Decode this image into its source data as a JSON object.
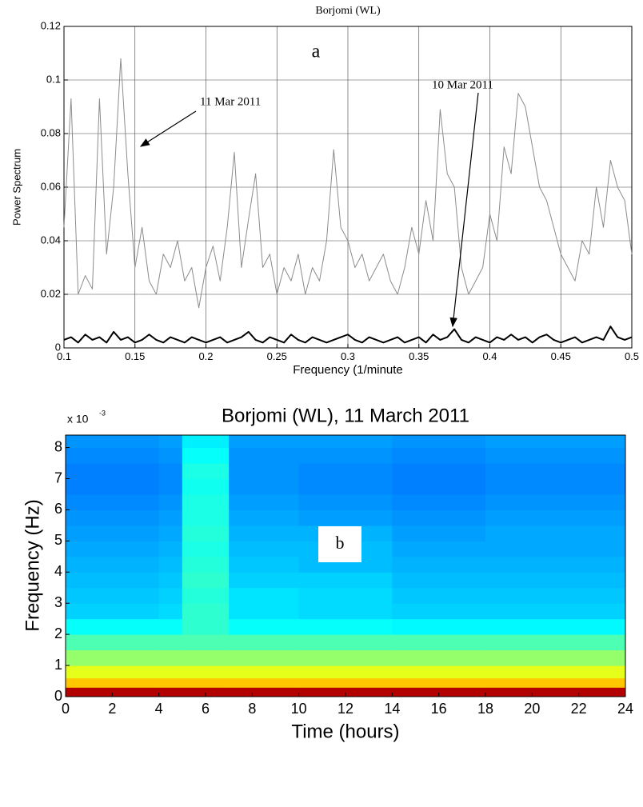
{
  "chart_data": [
    {
      "type": "line",
      "title": "Borjomi (WL)",
      "xlabel": "Frequency (1/minute",
      "ylabel": "Power Spectrum",
      "annotations": [
        "a",
        "11 Mar 2011",
        "10 Mar 2011"
      ],
      "xlim": [
        0.1,
        0.5
      ],
      "ylim": [
        0,
        0.12
      ],
      "xticks": [
        0.1,
        0.15,
        0.2,
        0.25,
        0.3,
        0.35,
        0.4,
        0.45,
        0.5
      ],
      "yticks": [
        0,
        0.02,
        0.04,
        0.06,
        0.08,
        0.1,
        0.12
      ],
      "grid": true,
      "x": [
        0.1,
        0.105,
        0.11,
        0.115,
        0.12,
        0.125,
        0.13,
        0.135,
        0.14,
        0.145,
        0.15,
        0.155,
        0.16,
        0.165,
        0.17,
        0.175,
        0.18,
        0.185,
        0.19,
        0.195,
        0.2,
        0.205,
        0.21,
        0.215,
        0.22,
        0.225,
        0.23,
        0.235,
        0.24,
        0.245,
        0.25,
        0.255,
        0.26,
        0.265,
        0.27,
        0.275,
        0.28,
        0.285,
        0.29,
        0.295,
        0.3,
        0.305,
        0.31,
        0.315,
        0.32,
        0.325,
        0.33,
        0.335,
        0.34,
        0.345,
        0.35,
        0.355,
        0.36,
        0.365,
        0.37,
        0.375,
        0.38,
        0.385,
        0.39,
        0.395,
        0.4,
        0.405,
        0.41,
        0.415,
        0.42,
        0.425,
        0.43,
        0.435,
        0.44,
        0.445,
        0.45,
        0.455,
        0.46,
        0.465,
        0.47,
        0.475,
        0.48,
        0.485,
        0.49,
        0.495,
        0.5
      ],
      "series": [
        {
          "color": "#8c8c8c",
          "width": 1,
          "values": [
            0.045,
            0.093,
            0.02,
            0.027,
            0.022,
            0.093,
            0.035,
            0.06,
            0.108,
            0.065,
            0.03,
            0.045,
            0.025,
            0.02,
            0.035,
            0.03,
            0.04,
            0.025,
            0.03,
            0.015,
            0.03,
            0.038,
            0.025,
            0.045,
            0.073,
            0.03,
            0.048,
            0.065,
            0.03,
            0.035,
            0.02,
            0.03,
            0.025,
            0.035,
            0.02,
            0.03,
            0.025,
            0.04,
            0.074,
            0.045,
            0.04,
            0.03,
            0.035,
            0.025,
            0.03,
            0.035,
            0.025,
            0.02,
            0.03,
            0.045,
            0.035,
            0.055,
            0.04,
            0.089,
            0.065,
            0.06,
            0.03,
            0.02,
            0.025,
            0.03,
            0.05,
            0.04,
            0.075,
            0.065,
            0.095,
            0.09,
            0.075,
            0.06,
            0.055,
            0.045,
            0.035,
            0.03,
            0.025,
            0.04,
            0.035,
            0.06,
            0.045,
            0.07,
            0.06,
            0.055,
            0.035
          ]
        },
        {
          "color": "#000000",
          "width": 2,
          "values": [
            0.003,
            0.004,
            0.002,
            0.005,
            0.003,
            0.004,
            0.002,
            0.006,
            0.003,
            0.004,
            0.002,
            0.003,
            0.005,
            0.003,
            0.002,
            0.004,
            0.003,
            0.002,
            0.004,
            0.003,
            0.002,
            0.003,
            0.004,
            0.002,
            0.003,
            0.004,
            0.006,
            0.003,
            0.002,
            0.004,
            0.003,
            0.002,
            0.005,
            0.003,
            0.002,
            0.004,
            0.003,
            0.002,
            0.003,
            0.004,
            0.005,
            0.003,
            0.002,
            0.004,
            0.003,
            0.002,
            0.003,
            0.004,
            0.002,
            0.003,
            0.004,
            0.002,
            0.005,
            0.003,
            0.004,
            0.007,
            0.003,
            0.002,
            0.004,
            0.003,
            0.002,
            0.004,
            0.003,
            0.005,
            0.003,
            0.004,
            0.002,
            0.004,
            0.005,
            0.003,
            0.002,
            0.003,
            0.004,
            0.002,
            0.003,
            0.004,
            0.003,
            0.008,
            0.004,
            0.003,
            0.004
          ]
        }
      ]
    },
    {
      "type": "heatmap",
      "title": "Borjomi (WL), 11 March 2011",
      "xlabel": "Time (hours)",
      "ylabel": "Frequency (Hz)",
      "y_multiplier": "x 10",
      "y_multiplier_exp": "-3",
      "annotations": [
        "b"
      ],
      "colormap": "jet",
      "xlim": [
        0,
        24
      ],
      "ylim": [
        0,
        8.4
      ],
      "xticks": [
        0,
        2,
        4,
        6,
        8,
        10,
        12,
        14,
        16,
        18,
        20,
        22,
        24
      ],
      "yticks": [
        0,
        1,
        2,
        3,
        4,
        5,
        6,
        7,
        8
      ],
      "x_bins": [
        0,
        4,
        5,
        7,
        10,
        14,
        18,
        24
      ],
      "y_bins": [
        0,
        0.3,
        0.6,
        1,
        1.5,
        2,
        2.5,
        3,
        3.5,
        4,
        4.5,
        5,
        5.5,
        6,
        6.5,
        7,
        7.5,
        8,
        8.4
      ],
      "z": [
        [
          0.95,
          0.95,
          0.95,
          0.95,
          0.95,
          0.95,
          0.95
        ],
        [
          0.68,
          0.68,
          0.68,
          0.68,
          0.68,
          0.68,
          0.68
        ],
        [
          0.6,
          0.6,
          0.6,
          0.6,
          0.6,
          0.6,
          0.6
        ],
        [
          0.52,
          0.52,
          0.52,
          0.52,
          0.52,
          0.52,
          0.52
        ],
        [
          0.45,
          0.45,
          0.45,
          0.45,
          0.45,
          0.45,
          0.45
        ],
        [
          0.38,
          0.38,
          0.42,
          0.38,
          0.38,
          0.37,
          0.37
        ],
        [
          0.33,
          0.34,
          0.42,
          0.35,
          0.34,
          0.33,
          0.33
        ],
        [
          0.32,
          0.33,
          0.41,
          0.35,
          0.34,
          0.32,
          0.32
        ],
        [
          0.31,
          0.32,
          0.42,
          0.33,
          0.33,
          0.31,
          0.31
        ],
        [
          0.3,
          0.31,
          0.41,
          0.32,
          0.31,
          0.3,
          0.3
        ],
        [
          0.29,
          0.3,
          0.4,
          0.31,
          0.31,
          0.29,
          0.29
        ],
        [
          0.28,
          0.29,
          0.41,
          0.3,
          0.3,
          0.28,
          0.29
        ],
        [
          0.27,
          0.28,
          0.4,
          0.29,
          0.28,
          0.27,
          0.28
        ],
        [
          0.26,
          0.27,
          0.4,
          0.28,
          0.27,
          0.26,
          0.27
        ],
        [
          0.25,
          0.26,
          0.39,
          0.27,
          0.26,
          0.25,
          0.26
        ],
        [
          0.25,
          0.26,
          0.4,
          0.27,
          0.26,
          0.25,
          0.26
        ],
        [
          0.26,
          0.27,
          0.38,
          0.27,
          0.27,
          0.26,
          0.27
        ],
        [
          0.27,
          0.28,
          0.36,
          0.28,
          0.28,
          0.27,
          0.28
        ]
      ]
    }
  ]
}
